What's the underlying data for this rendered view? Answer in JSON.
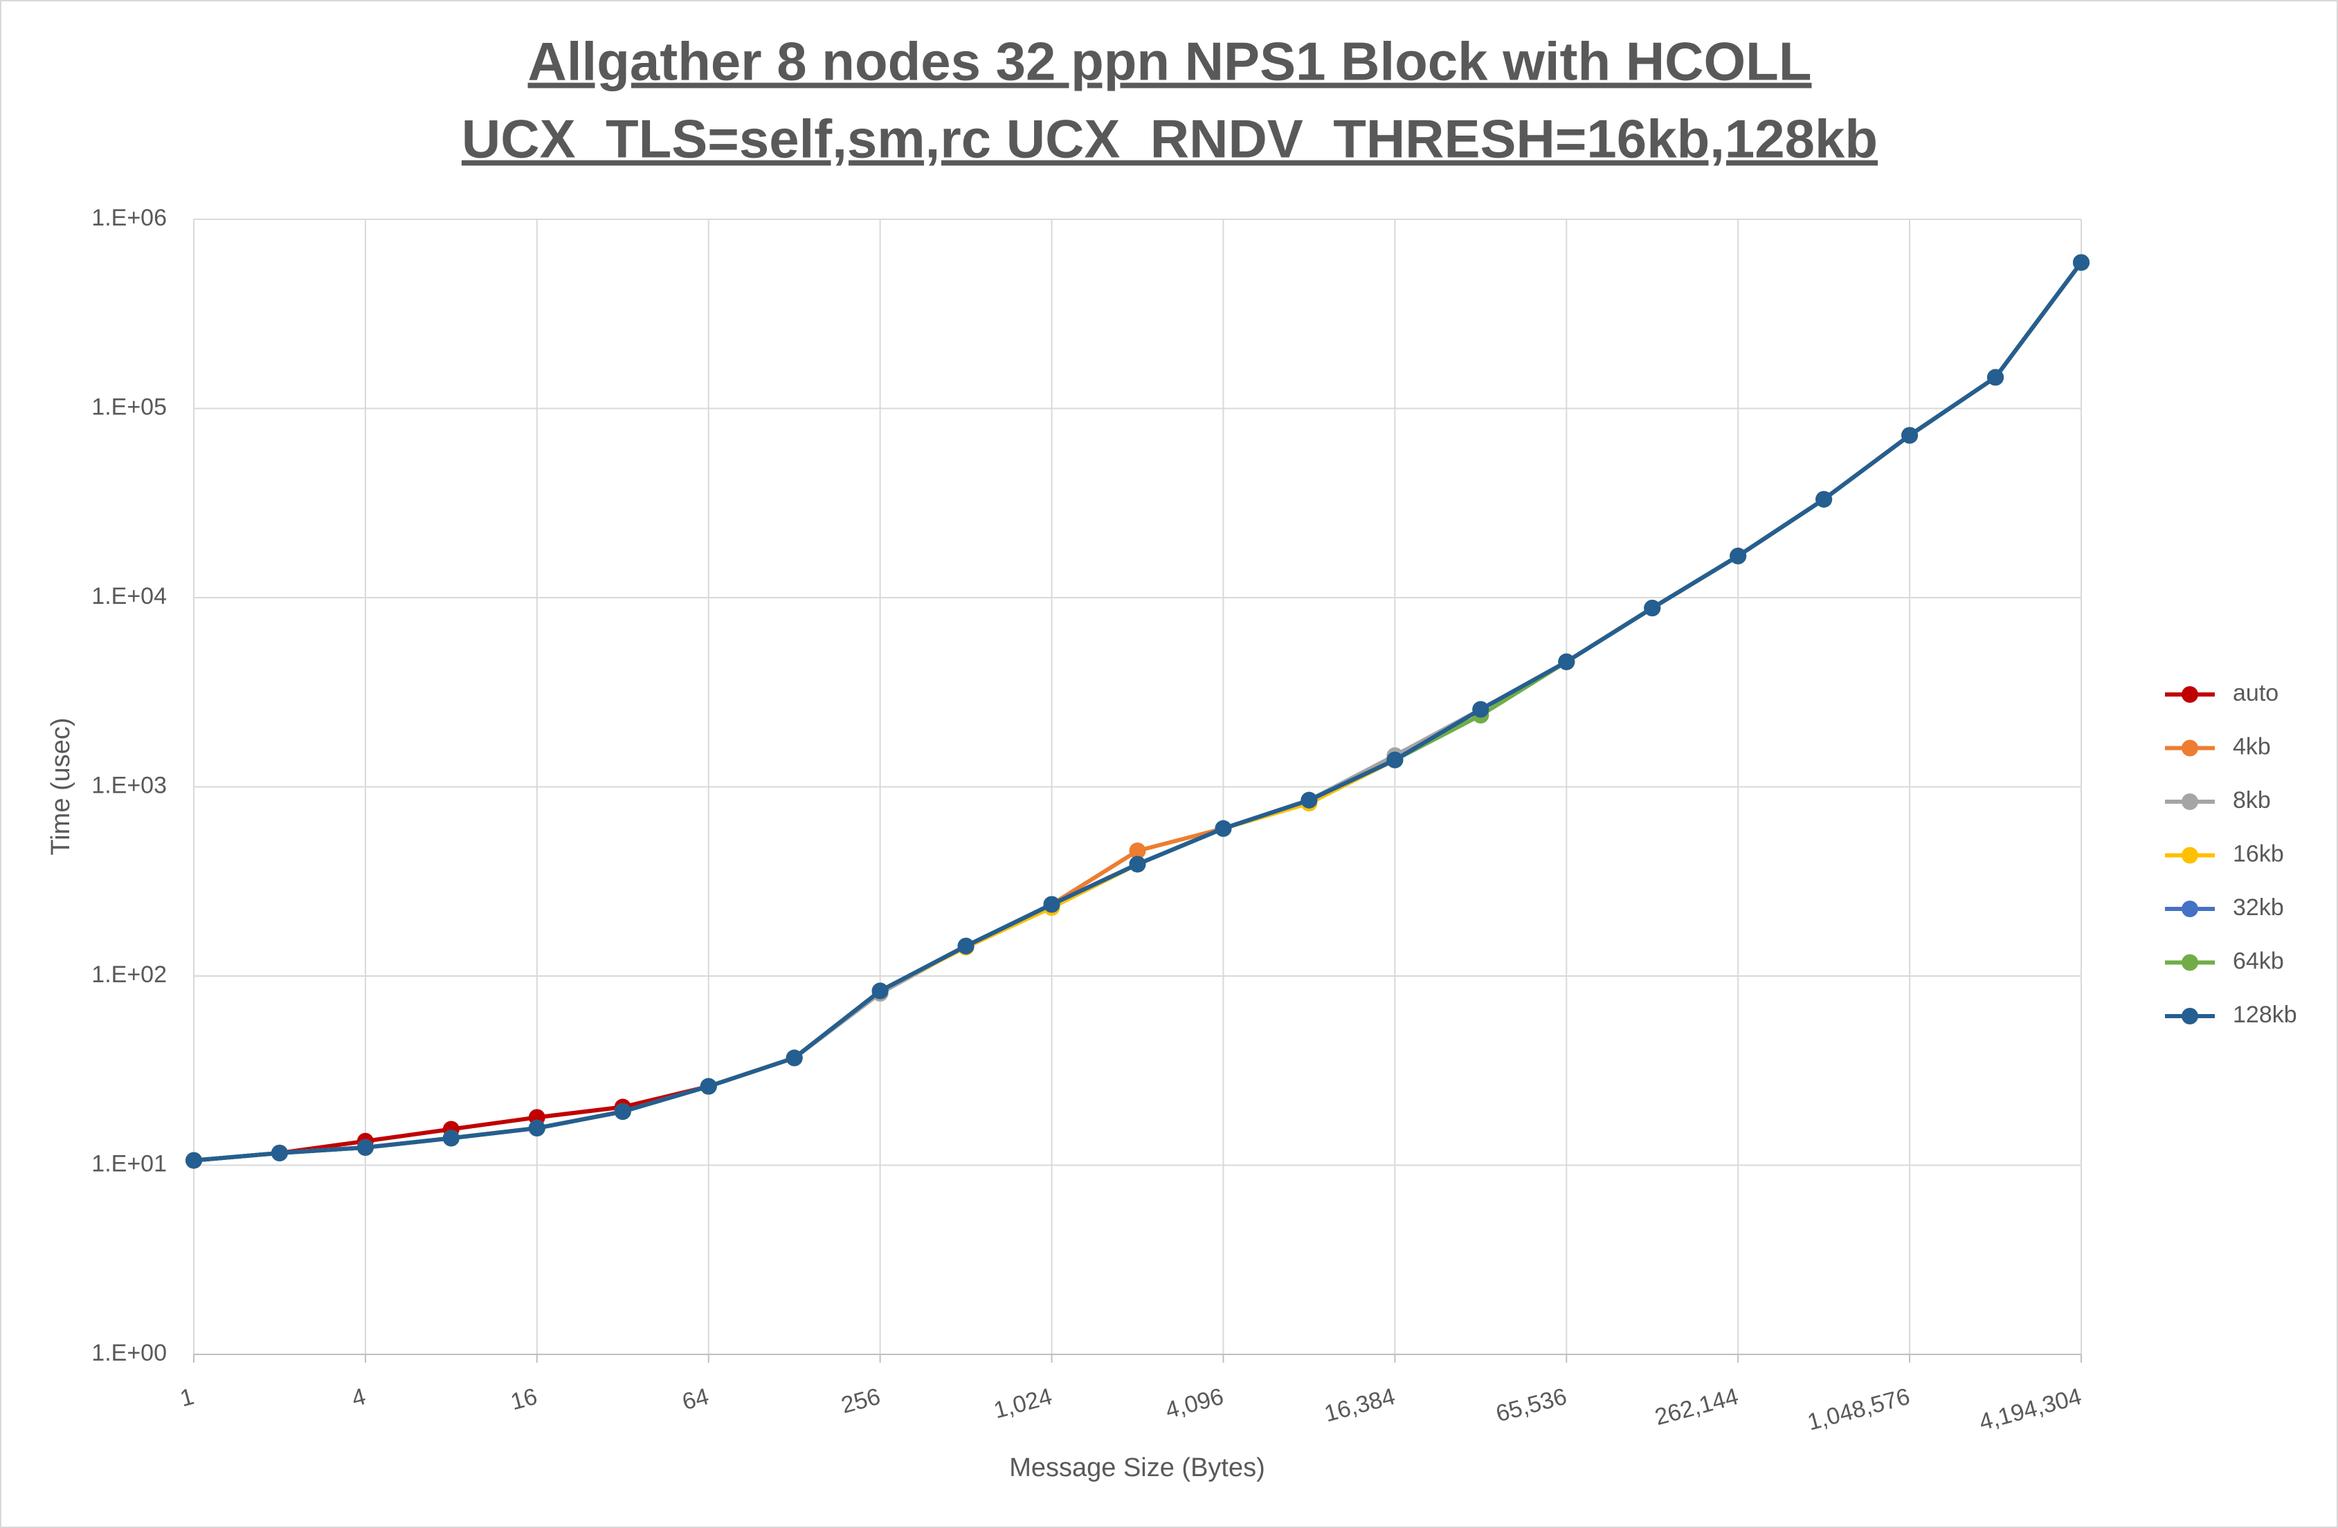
{
  "chart_data": {
    "type": "line",
    "title": [
      "Allgather 8 nodes 32 ppn NPS1 Block with HCOLL",
      "UCX_TLS=self,sm,rc UCX_RNDV_THRESH=16kb,128kb"
    ],
    "xlabel": "Message Size (Bytes)",
    "ylabel": "Time (usec)",
    "x": [
      1,
      2,
      4,
      8,
      16,
      32,
      64,
      128,
      256,
      512,
      1024,
      2048,
      4096,
      8192,
      16384,
      32768,
      65536,
      131072,
      262144,
      524288,
      1048576,
      2097152,
      4194304
    ],
    "xscale": "log",
    "yscale": "log",
    "xlim": [
      1,
      4194304
    ],
    "ylim": [
      1,
      1000000
    ],
    "xticks": [
      1,
      4,
      16,
      64,
      256,
      {
        "value": 1024,
        "label": "1,024"
      },
      {
        "value": 4096,
        "label": "4,096"
      },
      {
        "value": 16384,
        "label": "16,384"
      },
      {
        "value": 65536,
        "label": "65,536"
      },
      {
        "value": 262144,
        "label": "262,144"
      },
      {
        "value": 1048576,
        "label": "1,048,576"
      },
      {
        "value": 4194304,
        "label": "4,194,304"
      }
    ],
    "yticks": [
      {
        "value": 1,
        "label": "1.E+00"
      },
      {
        "value": 10,
        "label": "1.E+01"
      },
      {
        "value": 100,
        "label": "1.E+02"
      },
      {
        "value": 1000,
        "label": "1.E+03"
      },
      {
        "value": 10000,
        "label": "1.E+04"
      },
      {
        "value": 100000,
        "label": "1.E+05"
      },
      {
        "value": 1000000,
        "label": "1.E+06"
      }
    ],
    "grid": true,
    "legend": "right",
    "series": [
      {
        "name": "auto",
        "color": "#c00000",
        "values": [
          10.6,
          11.6,
          13.4,
          15.5,
          17.9,
          20.3,
          26.1,
          36.9,
          83.4,
          144,
          239,
          390,
          602,
          850,
          1387,
          2566,
          4580,
          8810,
          16600,
          33100,
          72100,
          146000,
          591000
        ]
      },
      {
        "name": "4kb",
        "color": "#ed7d31",
        "values": [
          10.6,
          11.6,
          12.4,
          13.9,
          15.7,
          19.2,
          26.1,
          36.9,
          83.4,
          144,
          239,
          459,
          602,
          850,
          1387,
          2566,
          4580,
          8810,
          16600,
          33100,
          72100,
          146000,
          591000
        ]
      },
      {
        "name": "8kb",
        "color": "#a5a5a5",
        "values": [
          10.6,
          11.6,
          12.4,
          13.9,
          15.7,
          19.2,
          26.1,
          36.9,
          81,
          144,
          239,
          390,
          602,
          850,
          1463,
          2566,
          4580,
          8810,
          16600,
          33100,
          72100,
          146000,
          591000
        ]
      },
      {
        "name": "16kb",
        "color": "#ffc000",
        "values": [
          10.6,
          11.6,
          12.4,
          13.9,
          15.7,
          19.2,
          26.1,
          36.9,
          83.4,
          142,
          230,
          390,
          602,
          819,
          1387,
          2566,
          4580,
          8810,
          16600,
          33100,
          72100,
          146000,
          591000
        ]
      },
      {
        "name": "32kb",
        "color": "#4472c4",
        "values": [
          10.6,
          11.6,
          12.4,
          13.9,
          15.7,
          19.2,
          26.1,
          36.9,
          83.4,
          144,
          239,
          390,
          602,
          850,
          1387,
          2566,
          4580,
          8810,
          16600,
          33100,
          72100,
          146000,
          591000
        ]
      },
      {
        "name": "64kb",
        "color": "#70ad47",
        "values": [
          10.6,
          11.6,
          12.4,
          13.9,
          15.7,
          19.2,
          26.1,
          36.9,
          83.4,
          144,
          239,
          390,
          602,
          850,
          1387,
          2390,
          4580,
          8810,
          16600,
          33100,
          72100,
          146000,
          591000
        ]
      },
      {
        "name": "128kb",
        "color": "#255e91",
        "values": [
          10.6,
          11.6,
          12.4,
          13.9,
          15.7,
          19.2,
          26.1,
          36.9,
          83.4,
          144,
          239,
          390,
          602,
          850,
          1387,
          2566,
          4580,
          8810,
          16600,
          33100,
          72100,
          146000,
          591000
        ]
      }
    ]
  }
}
